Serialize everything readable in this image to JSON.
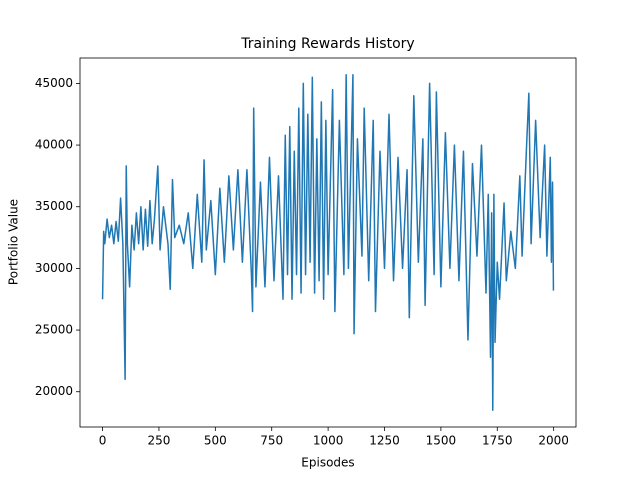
{
  "chart_data": {
    "type": "line",
    "title": "Training Rewards History",
    "xlabel": "Episodes",
    "ylabel": "Portfolio Value",
    "xlim": [
      -100,
      2099
    ],
    "ylim": [
      17140,
      47060
    ],
    "xticks": [
      0,
      250,
      500,
      750,
      1000,
      1250,
      1500,
      1750,
      2000
    ],
    "yticks": [
      20000,
      25000,
      30000,
      35000,
      40000,
      45000
    ],
    "series": [
      {
        "color": "#1f77b4",
        "x": [
          0,
          5,
          10,
          20,
          30,
          40,
          50,
          60,
          70,
          80,
          90,
          100,
          105,
          110,
          120,
          130,
          140,
          150,
          160,
          170,
          180,
          190,
          200,
          210,
          220,
          230,
          245,
          255,
          270,
          290,
          300,
          310,
          320,
          340,
          360,
          380,
          400,
          420,
          440,
          450,
          460,
          480,
          500,
          520,
          540,
          560,
          580,
          600,
          620,
          640,
          660,
          665,
          670,
          680,
          700,
          720,
          740,
          760,
          780,
          800,
          810,
          820,
          830,
          840,
          850,
          860,
          870,
          880,
          890,
          900,
          910,
          920,
          930,
          940,
          950,
          960,
          970,
          980,
          990,
          1000,
          1020,
          1030,
          1050,
          1070,
          1080,
          1090,
          1110,
          1115,
          1130,
          1150,
          1160,
          1180,
          1200,
          1210,
          1230,
          1250,
          1270,
          1290,
          1310,
          1330,
          1350,
          1360,
          1380,
          1400,
          1420,
          1430,
          1450,
          1470,
          1480,
          1500,
          1520,
          1540,
          1560,
          1580,
          1600,
          1620,
          1640,
          1660,
          1680,
          1700,
          1710,
          1720,
          1725,
          1730,
          1735,
          1740,
          1750,
          1760,
          1780,
          1790,
          1810,
          1830,
          1850,
          1860,
          1880,
          1890,
          1900,
          1920,
          1940,
          1960,
          1970,
          1985,
          1990,
          1995,
          1999
        ],
        "values": [
          27500,
          33000,
          32000,
          34000,
          32500,
          33500,
          32000,
          33800,
          32200,
          35700,
          32000,
          21000,
          38300,
          32000,
          28500,
          33500,
          31500,
          34500,
          32000,
          35000,
          31500,
          34800,
          31800,
          35500,
          32000,
          34000,
          38300,
          31500,
          35000,
          32000,
          28300,
          37200,
          32500,
          33500,
          32000,
          34500,
          30000,
          36000,
          30500,
          38800,
          31500,
          35500,
          29500,
          36500,
          30500,
          37500,
          31500,
          38000,
          30500,
          38000,
          29500,
          26500,
          43000,
          28500,
          37000,
          28500,
          39000,
          29000,
          37500,
          27500,
          40800,
          29500,
          41500,
          27500,
          39500,
          29500,
          43000,
          28000,
          45000,
          29500,
          42500,
          30500,
          45500,
          28000,
          40500,
          29000,
          43500,
          27500,
          42000,
          29500,
          44500,
          26500,
          42000,
          29500,
          45700,
          30000,
          45700,
          24700,
          40500,
          31000,
          43000,
          29000,
          42000,
          26500,
          39500,
          30000,
          42500,
          29000,
          39000,
          30000,
          38000,
          26000,
          44000,
          30500,
          40500,
          27000,
          45000,
          29500,
          44300,
          28500,
          41000,
          30000,
          40000,
          29000,
          39500,
          24200,
          38500,
          31000,
          40000,
          28000,
          36000,
          22800,
          34500,
          18500,
          36000,
          24000,
          30500,
          27500,
          35300,
          29000,
          33000,
          30000,
          37500,
          31000,
          40000,
          44200,
          32000,
          42000,
          32500,
          40000,
          31000,
          39000,
          30500,
          37000,
          28200
        ]
      }
    ]
  }
}
